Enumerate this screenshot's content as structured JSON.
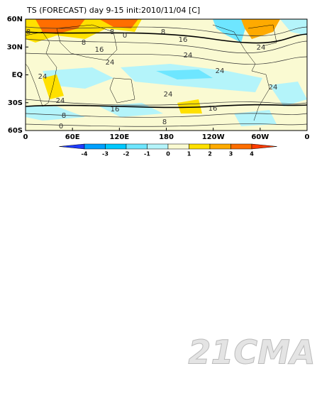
{
  "title": "TS (FORECAST) day 9-15 init:2010/11/04  [C]",
  "map": {
    "lat_labels": [
      "60N",
      "30N",
      "EQ",
      "30S",
      "60S"
    ],
    "lon_labels": [
      "0",
      "60E",
      "120E",
      "180",
      "120W",
      "60W",
      "0"
    ],
    "contour_labels": [
      "8",
      "8",
      "0",
      "8",
      "8",
      "16",
      "16",
      "24",
      "24",
      "24",
      "24",
      "24",
      "24",
      "16",
      "8",
      "0",
      "24",
      "16",
      "8",
      "24"
    ],
    "colorbar": {
      "ticks": [
        -4,
        -3,
        -2,
        -1,
        0,
        1,
        2,
        3,
        4
      ],
      "colors": [
        "#1e3cff",
        "#00a0ff",
        "#00c8ff",
        "#6ee6ff",
        "#b4f4fa",
        "#fafad2",
        "#ffe000",
        "#ffaa00",
        "#ff6e00",
        "#ff3c00"
      ]
    }
  },
  "watermark": "21CMA"
}
